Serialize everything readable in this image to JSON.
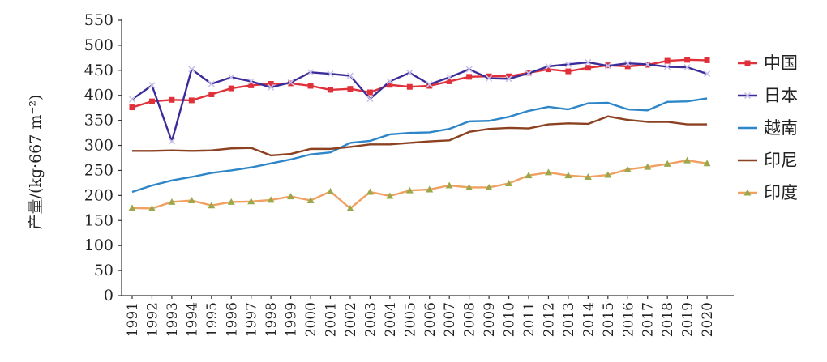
{
  "chart_data": {
    "type": "line",
    "title": "",
    "xlabel": "",
    "ylabel": "产量/(kg·667 m⁻²)",
    "ylim": [
      0,
      550
    ],
    "yticks": [
      0,
      50,
      100,
      150,
      200,
      250,
      300,
      350,
      400,
      450,
      500,
      550
    ],
    "grid": false,
    "legend_position": "right",
    "x": [
      "1991",
      "1992",
      "1993",
      "1994",
      "1995",
      "1996",
      "1997",
      "1998",
      "1999",
      "2000",
      "2001",
      "2002",
      "2003",
      "2004",
      "2005",
      "2006",
      "2007",
      "2008",
      "2009",
      "2010",
      "2011",
      "2012",
      "2013",
      "2014",
      "2015",
      "2016",
      "2017",
      "2018",
      "2019",
      "2020"
    ],
    "series": [
      {
        "name": "中国",
        "color": "#e0313a",
        "marker": "square",
        "values": [
          376,
          388,
          391,
          390,
          402,
          414,
          420,
          423,
          424,
          419,
          411,
          413,
          406,
          421,
          417,
          419,
          428,
          437,
          438,
          438,
          445,
          452,
          448,
          455,
          460,
          458,
          461,
          469,
          471,
          470
        ]
      },
      {
        "name": "日本",
        "color": "#3b2d99",
        "marker": "x",
        "values": [
          392,
          420,
          308,
          452,
          423,
          436,
          428,
          416,
          426,
          446,
          443,
          439,
          393,
          428,
          445,
          422,
          436,
          452,
          434,
          433,
          444,
          458,
          462,
          466,
          459,
          464,
          462,
          457,
          456,
          443
        ]
      },
      {
        "name": "越南",
        "color": "#2e86c8",
        "marker": "none",
        "values": [
          207,
          220,
          230,
          237,
          245,
          250,
          256,
          264,
          272,
          282,
          286,
          305,
          309,
          322,
          325,
          326,
          333,
          348,
          349,
          357,
          369,
          377,
          372,
          384,
          385,
          372,
          370,
          387,
          388,
          394
        ]
      },
      {
        "name": "印尼",
        "color": "#8c4120",
        "marker": "none",
        "values": [
          289,
          289,
          290,
          289,
          290,
          294,
          295,
          280,
          283,
          293,
          293,
          297,
          302,
          302,
          305,
          308,
          310,
          327,
          333,
          335,
          334,
          342,
          344,
          343,
          358,
          351,
          347,
          347,
          342,
          342
        ]
      },
      {
        "name": "印度",
        "color": "#f0a060",
        "marker": "triangle",
        "marker_color": "#9aa84a",
        "values": [
          175,
          174,
          187,
          190,
          180,
          187,
          188,
          191,
          198,
          190,
          208,
          174,
          207,
          199,
          210,
          212,
          220,
          216,
          216,
          224,
          240,
          246,
          240,
          237,
          241,
          252,
          257,
          263,
          270,
          264
        ]
      }
    ]
  }
}
